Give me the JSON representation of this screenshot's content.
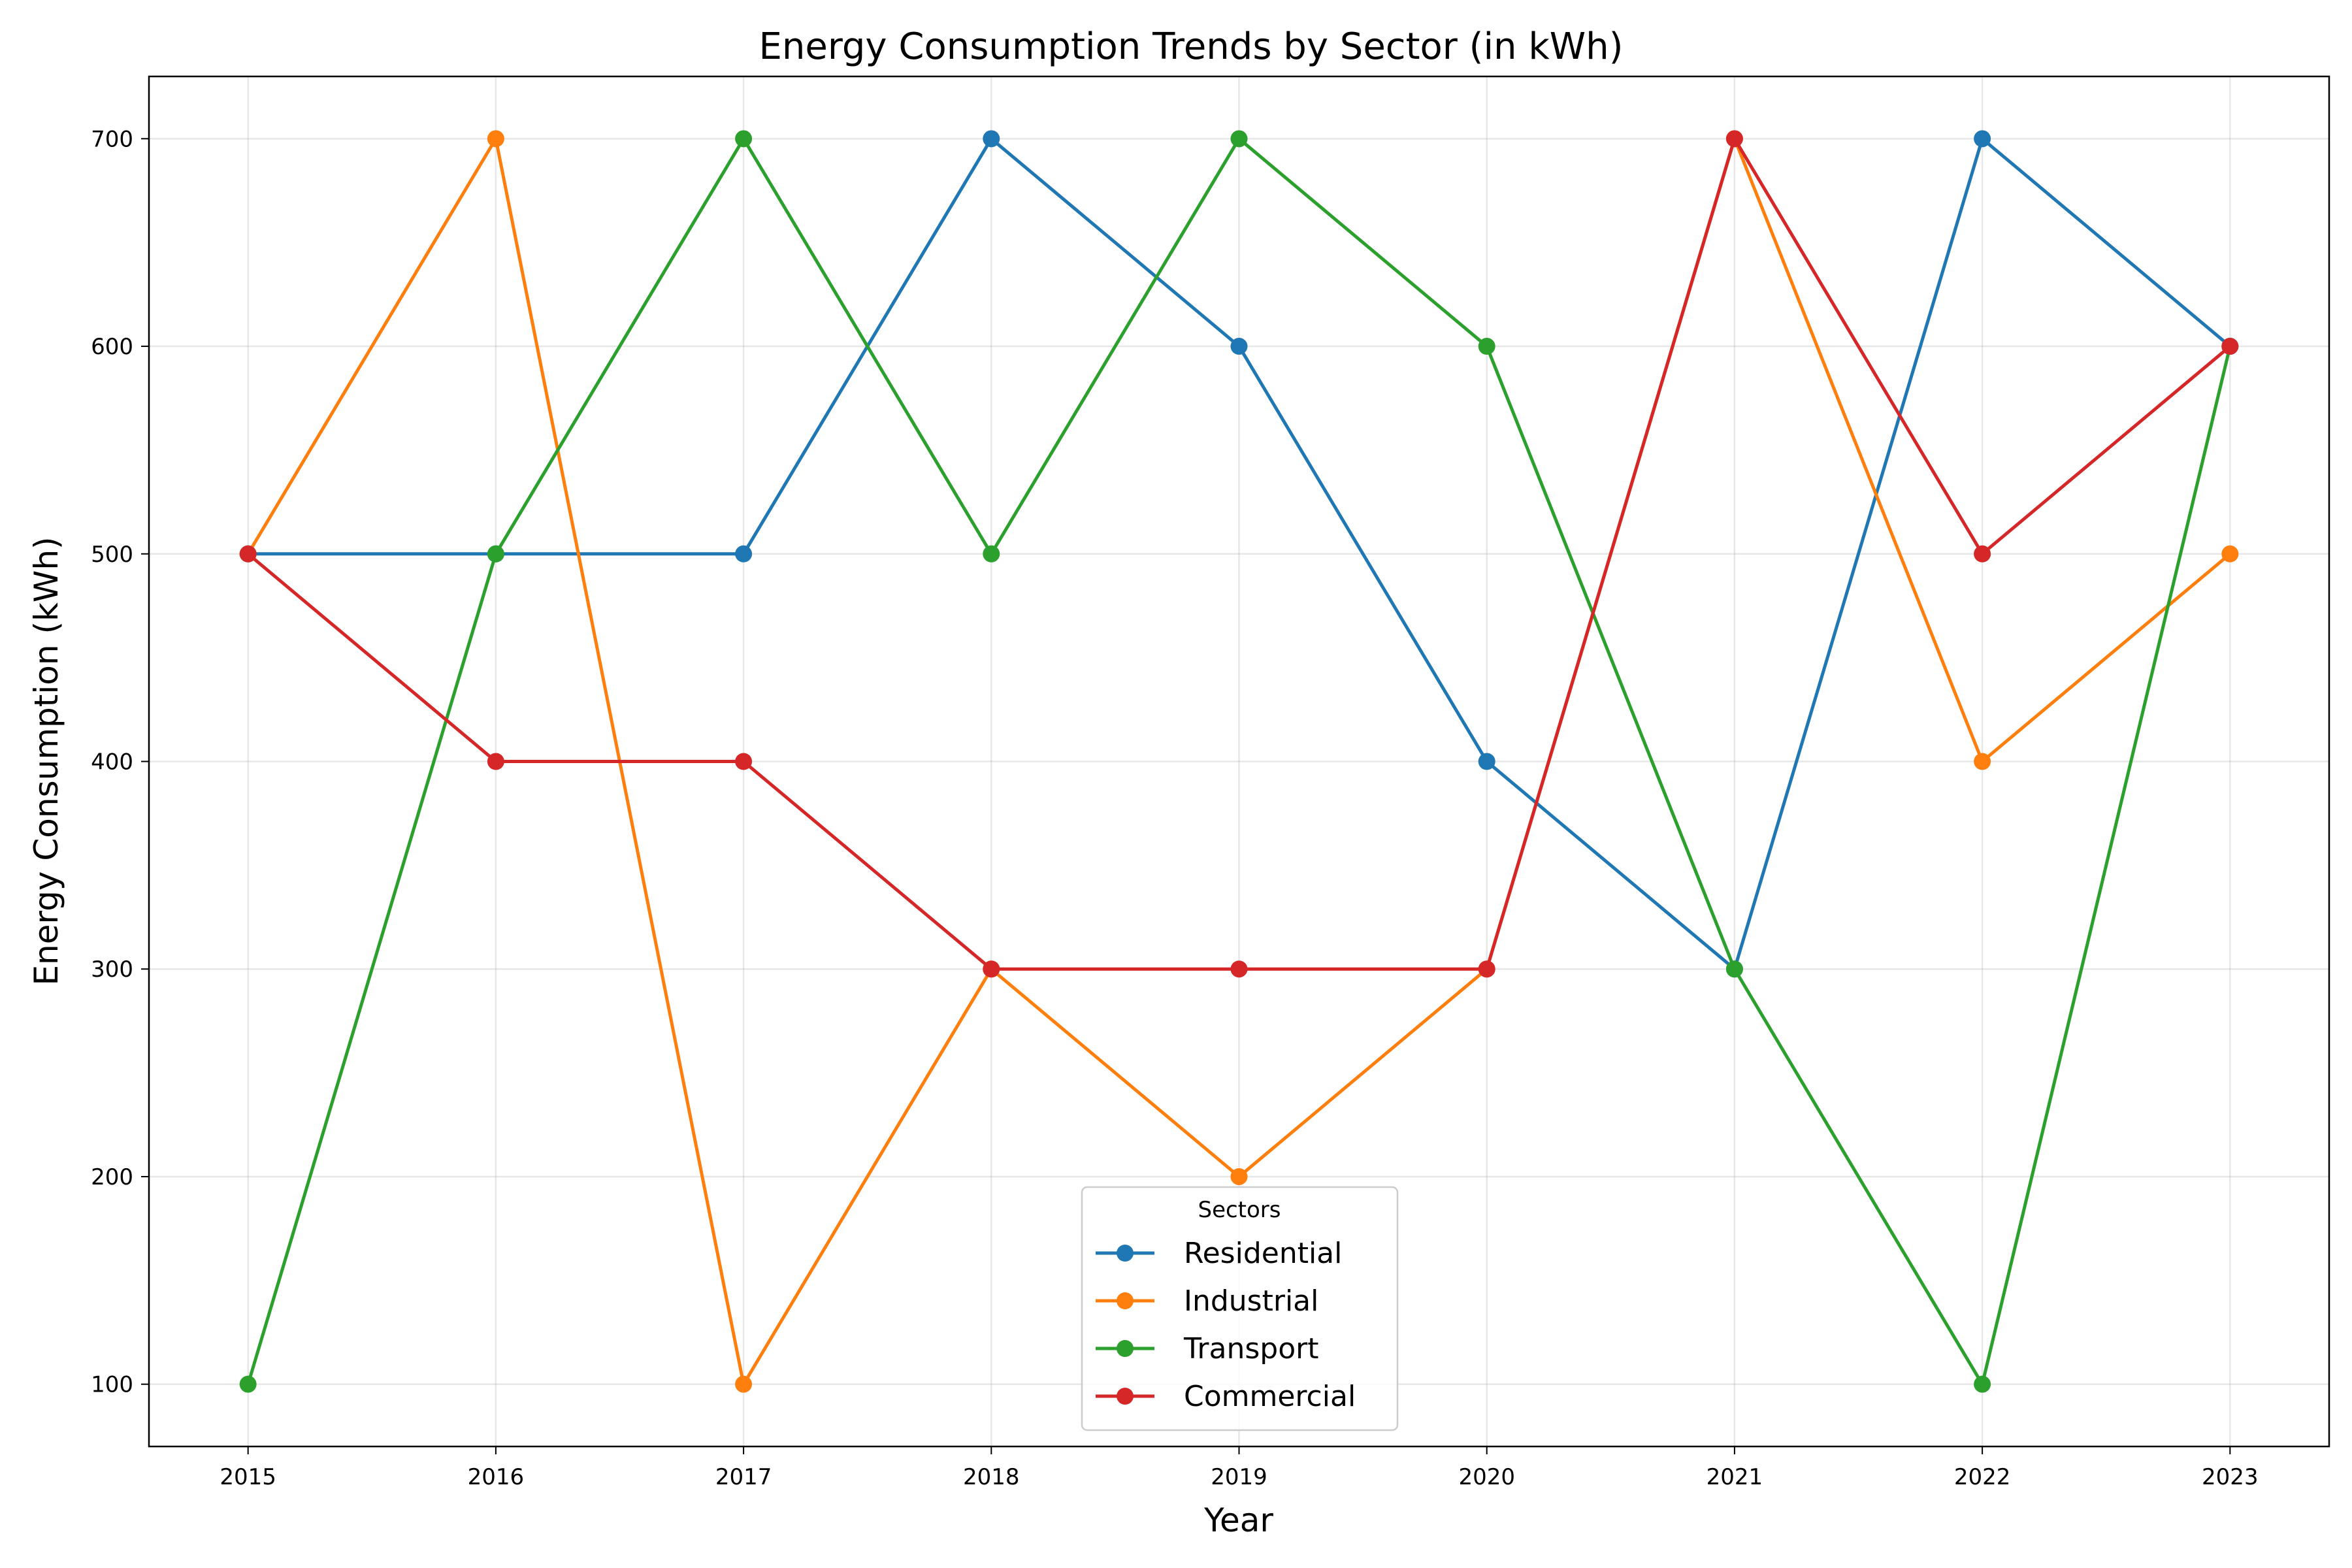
{
  "chart_data": {
    "type": "line",
    "title": "Energy Consumption Trends by Sector (in kWh)",
    "xlabel": "Year",
    "ylabel": "Energy Consumption (kWh)",
    "x": [
      2015,
      2016,
      2017,
      2018,
      2019,
      2020,
      2021,
      2022,
      2023
    ],
    "xlim": [
      2014.6,
      2023.4
    ],
    "ylim": [
      70,
      730
    ],
    "yticks": [
      100,
      200,
      300,
      400,
      500,
      600,
      700
    ],
    "grid": true,
    "legend": {
      "title": "Sectors",
      "placement": "lower-center"
    },
    "series": [
      {
        "name": "Residential",
        "color": "#1f77b4",
        "values": [
          500,
          500,
          500,
          700,
          600,
          400,
          300,
          700,
          600
        ]
      },
      {
        "name": "Industrial",
        "color": "#ff7f0e",
        "values": [
          500,
          700,
          100,
          300,
          200,
          300,
          700,
          400,
          500
        ]
      },
      {
        "name": "Transport",
        "color": "#2ca02c",
        "values": [
          100,
          500,
          700,
          500,
          700,
          600,
          300,
          100,
          600
        ]
      },
      {
        "name": "Commercial",
        "color": "#d62728",
        "values": [
          500,
          400,
          400,
          300,
          300,
          300,
          700,
          500,
          600
        ]
      }
    ]
  }
}
